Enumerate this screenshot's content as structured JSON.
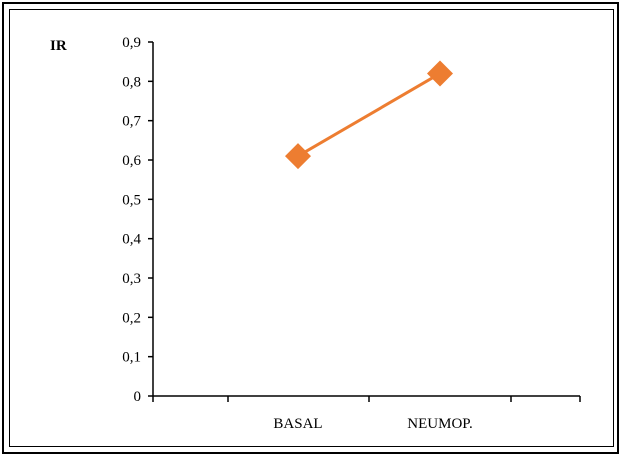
{
  "chart_data": {
    "type": "line",
    "title": "",
    "xlabel": "",
    "ylabel": "IR",
    "categories": [
      "BASAL",
      "NEUMOP."
    ],
    "series": [
      {
        "values": [
          0.61,
          0.82
        ]
      }
    ],
    "ylim": [
      0,
      0.9
    ],
    "yticks": [
      "0",
      "0,1",
      "0,2",
      "0,3",
      "0,4",
      "0,5",
      "0,6",
      "0,7",
      "0,8",
      "0,9"
    ],
    "grid": false,
    "legend": "none",
    "colors": {
      "line": "#ed7d31",
      "marker": "#ed7d31",
      "axis": "#000000"
    }
  }
}
